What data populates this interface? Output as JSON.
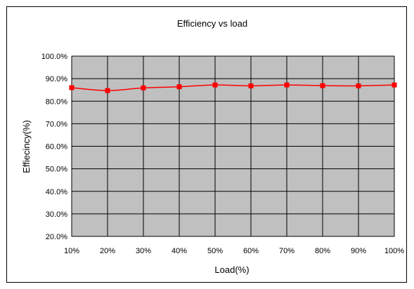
{
  "chart_data": {
    "type": "line",
    "title": "Efficiency vs load",
    "xlabel": "Load(%)",
    "ylabel": "Effiecincy(%)",
    "categories": [
      "10%",
      "20%",
      "30%",
      "40%",
      "50%",
      "60%",
      "70%",
      "80%",
      "90%",
      "100%"
    ],
    "yticks": [
      "20.0%",
      "30.0%",
      "40.0%",
      "50.0%",
      "60.0%",
      "70.0%",
      "80.0%",
      "90.0%",
      "100.0%"
    ],
    "ylim": [
      20,
      100
    ],
    "grid": true,
    "series": [
      {
        "values": [
          86.0,
          84.7,
          85.9,
          86.4,
          87.2,
          86.8,
          87.2,
          86.9,
          86.8,
          87.2
        ],
        "color": "#ff0000",
        "marker": "square"
      }
    ],
    "plot_background": "#c0c0c0"
  }
}
